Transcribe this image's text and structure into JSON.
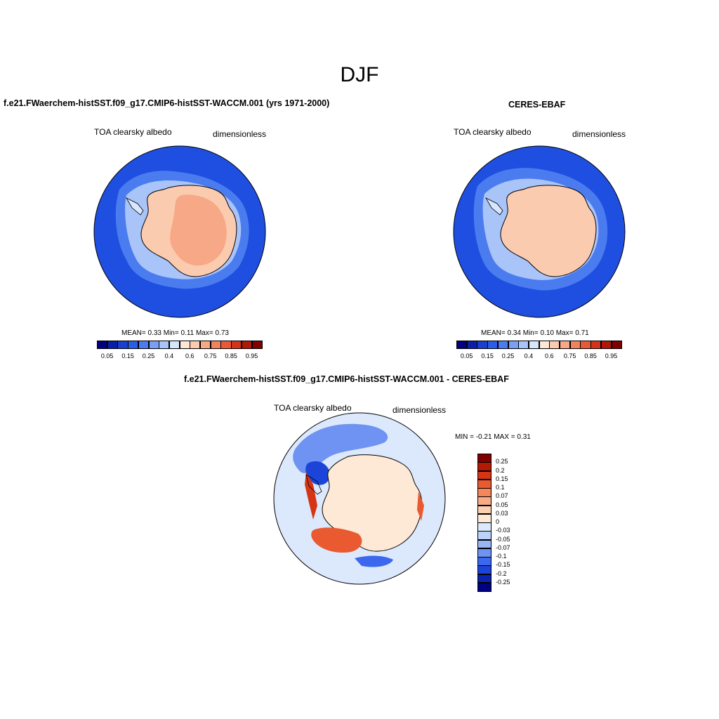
{
  "title": "DJF",
  "panels": [
    {
      "title": "f.e21.FWaerchem-histSST.f09_g17.CMIP6-histSST-WACCM.001 (yrs 1971-2000)",
      "left_label": "TOA clearsky albedo",
      "right_label": "dimensionless",
      "stats": "MEAN=   0.33  Min=   0.11  Max=   0.73"
    },
    {
      "title": "CERES-EBAF",
      "left_label": "TOA clearsky albedo",
      "right_label": "dimensionless",
      "stats": "MEAN=   0.34  Min=   0.10  Max=   0.71"
    },
    {
      "title": "f.e21.FWaerchem-histSST.f09_g17.CMIP6-histSST-WACCM.001 - CERES-EBAF",
      "left_label": "TOA clearsky albedo",
      "right_label": "dimensionless",
      "stats": "MIN =  -0.21 MAX =   0.31"
    }
  ],
  "colorbar_abs": {
    "colors": [
      "#000080",
      "#0a1fa8",
      "#1a3fd0",
      "#2a5ee8",
      "#4a7cf0",
      "#7aa0f5",
      "#a9c4f8",
      "#d6e6fb",
      "#fde8d8",
      "#fbcbb0",
      "#f7a886",
      "#f1825e",
      "#e85a36",
      "#d43219",
      "#b01808",
      "#800000"
    ],
    "labels": [
      "0.05",
      "0.15",
      "0.25",
      "0.4",
      "0.6",
      "0.75",
      "0.85",
      "0.95"
    ]
  },
  "colorbar_diff": {
    "colors": [
      "#000080",
      "#0a22b0",
      "#1c44d8",
      "#3c68ee",
      "#6f93f2",
      "#98b6f6",
      "#bdd2f9",
      "#dce9fc",
      "#fde9d6",
      "#fbd0b2",
      "#f8ac86",
      "#f3865a",
      "#e95a30",
      "#d63515",
      "#b51a06",
      "#800000"
    ],
    "labels": [
      "-0.25",
      "-0.2",
      "-0.15",
      "-0.1",
      "-0.07",
      "-0.05",
      "-0.03",
      "0",
      "0.03",
      "0.05",
      "0.07",
      "0.1",
      "0.15",
      "0.2",
      "0.25"
    ]
  },
  "map_colors": {
    "ocean_deep": "#1f4fe0",
    "ocean_mid": "#4a7cf0",
    "ocean_light": "#a9c4f8",
    "ice_edge": "#d6e6fb",
    "land": "#fbcbb0",
    "land_high": "#f7a886",
    "diff_ocean": "#dce9fc",
    "diff_land": "#fde9d6"
  }
}
